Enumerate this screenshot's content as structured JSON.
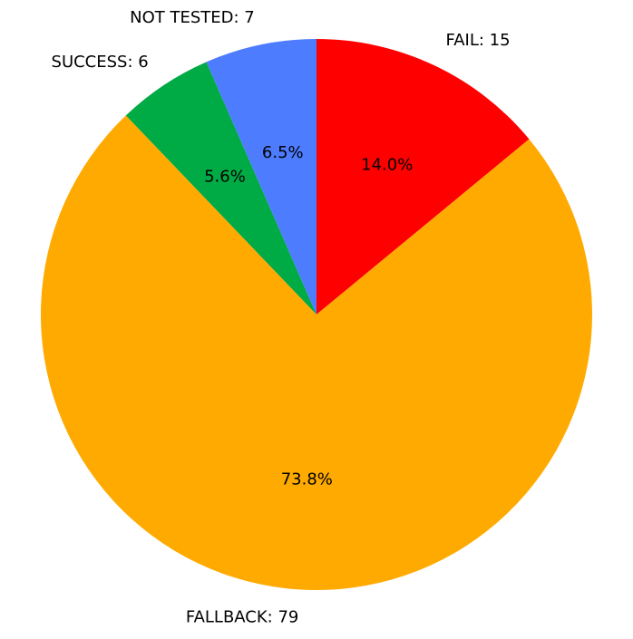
{
  "chart_data": {
    "type": "pie",
    "title": "",
    "slices": [
      {
        "category": "FAIL",
        "value": 15,
        "percent": 14.0,
        "color": "#ff0000",
        "label": "FAIL: 15",
        "percent_label": "14.0%"
      },
      {
        "category": "FALLBACK",
        "value": 79,
        "percent": 73.8,
        "color": "#ffaa00",
        "label": "FALLBACK: 79",
        "percent_label": "73.8%"
      },
      {
        "category": "SUCCESS",
        "value": 6,
        "percent": 5.6,
        "color": "#00aa44",
        "label": "SUCCESS: 6",
        "percent_label": "5.6%"
      },
      {
        "category": "NOT TESTED",
        "value": 7,
        "percent": 6.5,
        "color": "#4d7cff",
        "label": "NOT TESTED: 7",
        "percent_label": "6.5%"
      }
    ],
    "legend": "none",
    "direction": "clockwise",
    "start": "top"
  }
}
